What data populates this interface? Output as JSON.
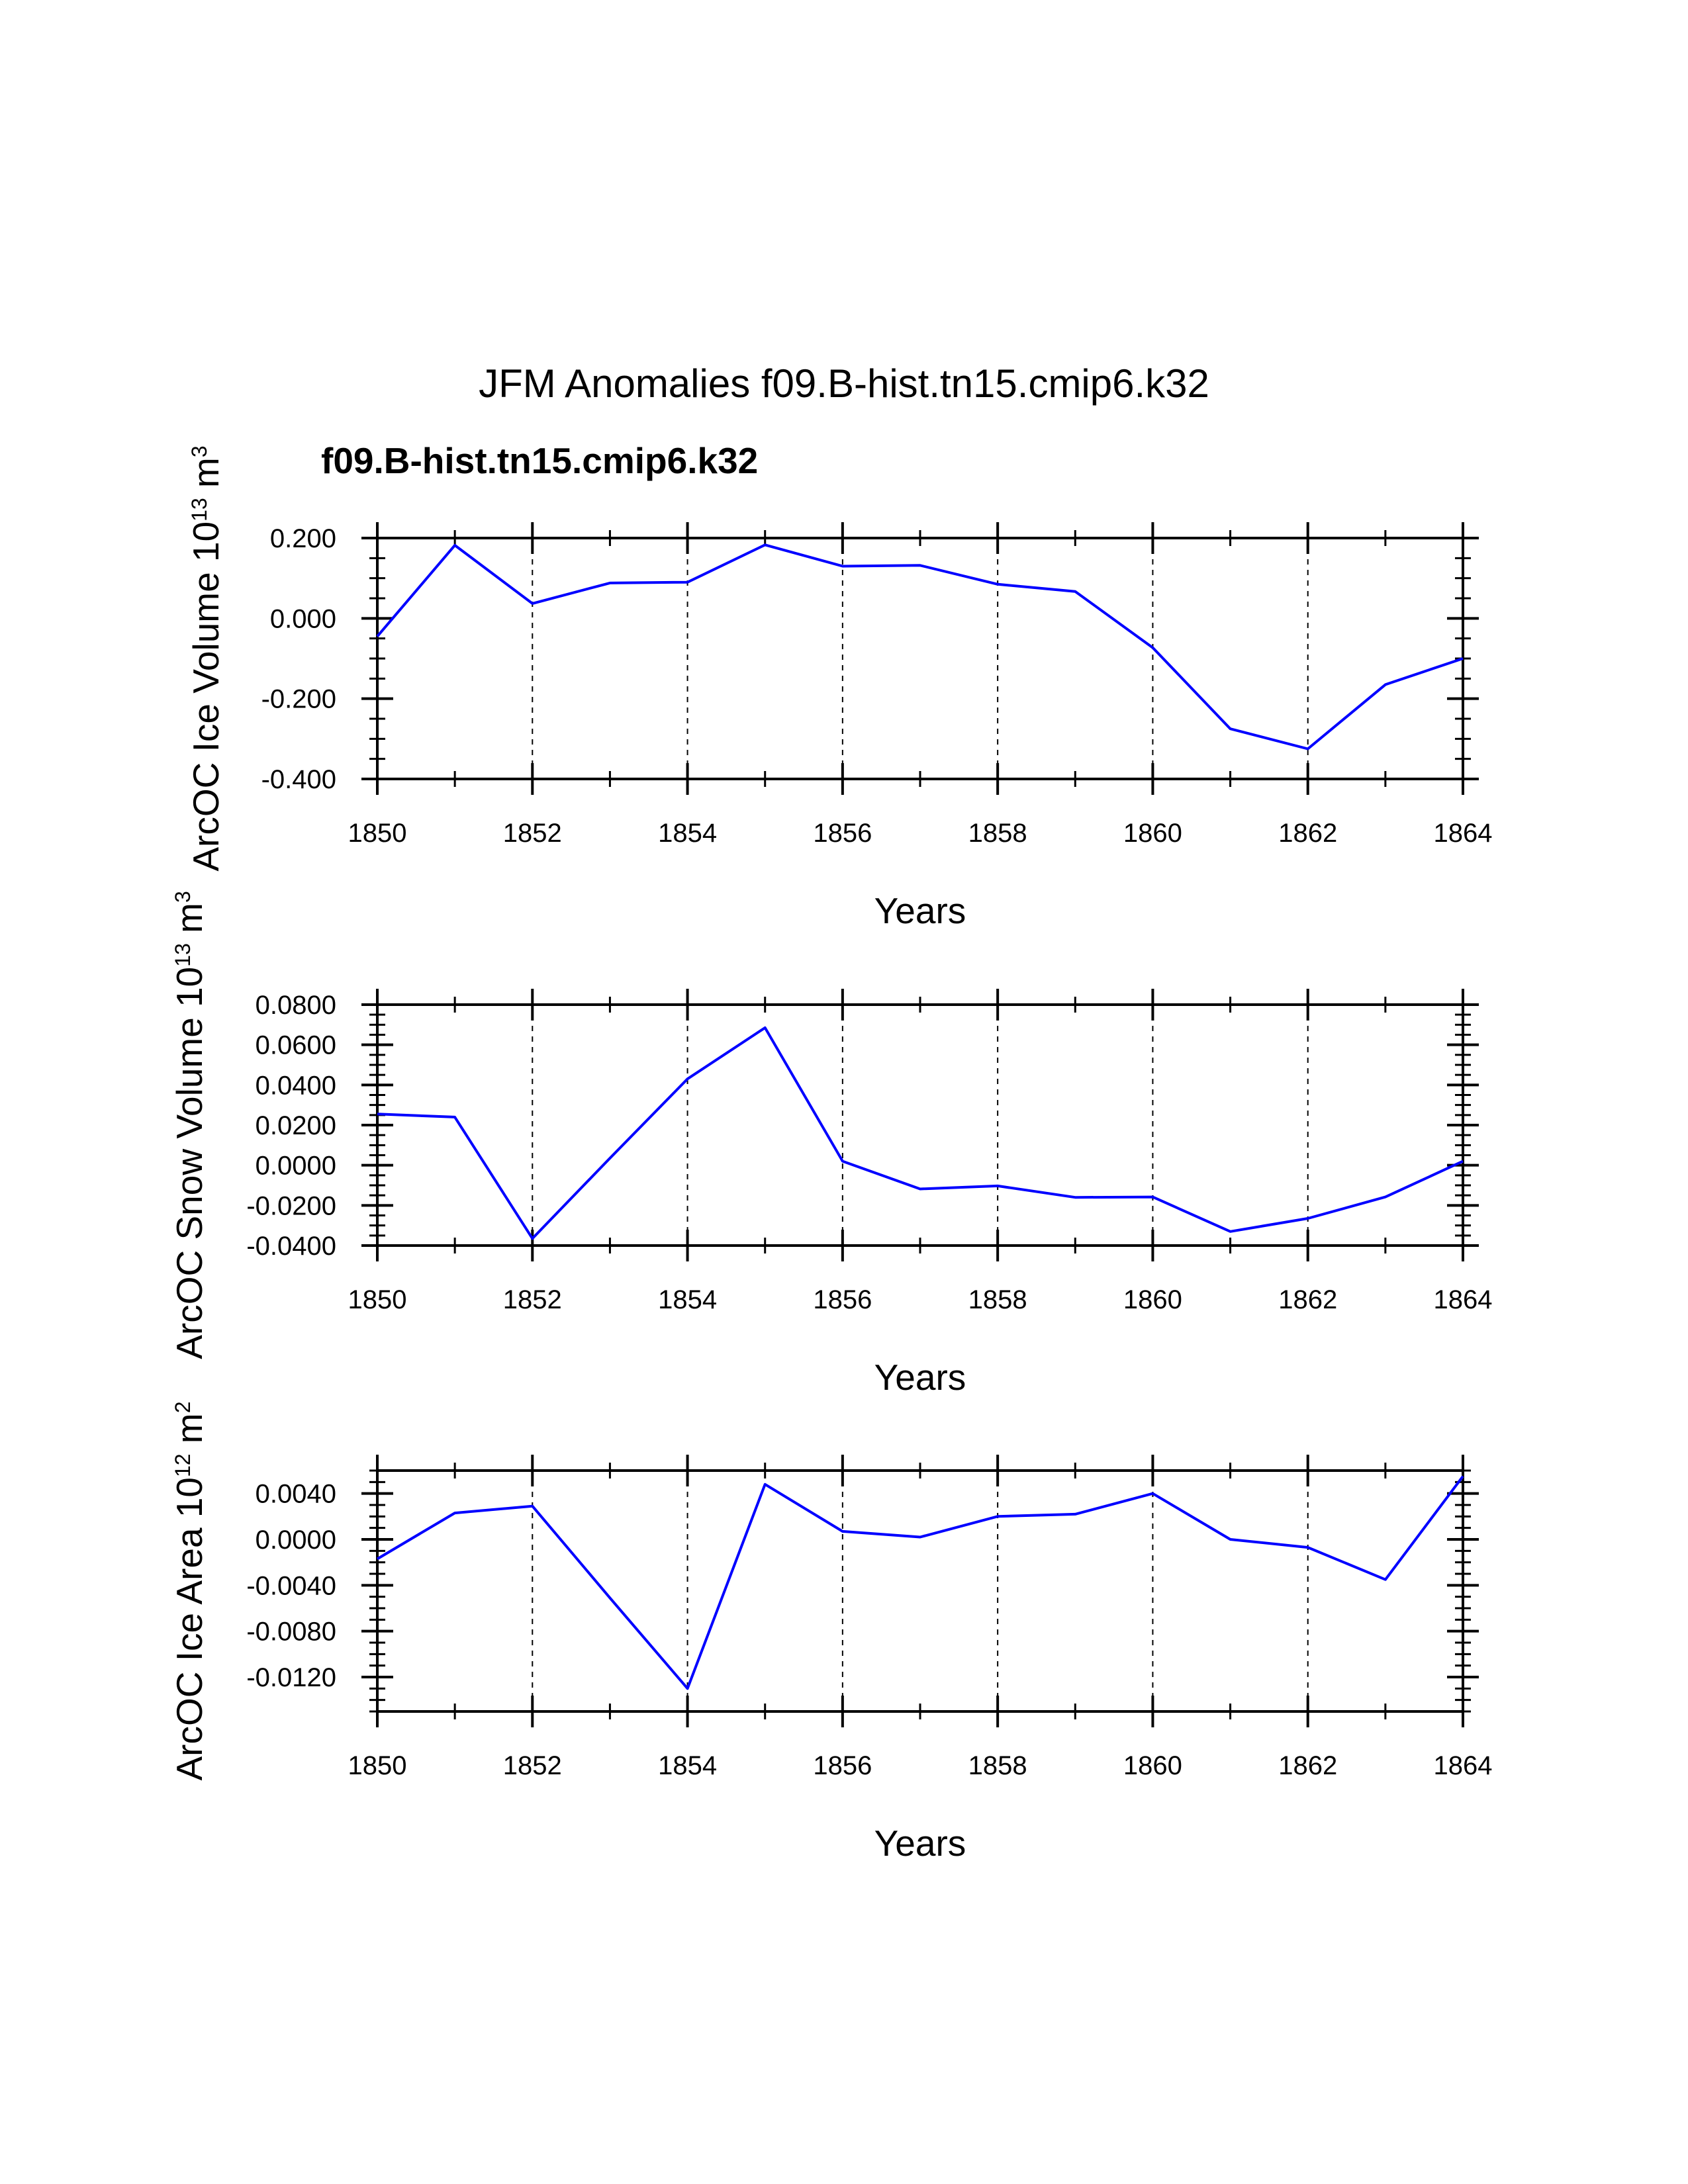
{
  "title": "JFM Anomalies f09.B-hist.tn15.cmip6.k32",
  "legend_label": "f09.B-hist.tn15.cmip6.k32",
  "colors": {
    "line": "#0000ff",
    "axis": "#000000",
    "grid": "#000000",
    "legend": "#0000ff"
  },
  "chart_data": [
    {
      "type": "line",
      "title": "",
      "xlabel": "Years",
      "ylabel": "ArcOC Ice Volume 10",
      "ylabel_exp": "13",
      "ylabel_unit": " m",
      "ylabel_unit_exp": "3",
      "x": [
        1850,
        1851,
        1852,
        1853,
        1854,
        1855,
        1856,
        1857,
        1858,
        1859,
        1860,
        1861,
        1862,
        1863,
        1864
      ],
      "series": [
        {
          "name": "f09.B-hist.tn15.cmip6.k32",
          "values": [
            -0.045,
            0.182,
            0.037,
            0.088,
            0.09,
            0.183,
            0.13,
            0.132,
            0.085,
            0.067,
            -0.073,
            -0.275,
            -0.325,
            -0.165,
            -0.1
          ]
        }
      ],
      "xlim": [
        1850,
        1864
      ],
      "ylim": [
        -0.4,
        0.2
      ],
      "xticks": [
        1850,
        1852,
        1854,
        1856,
        1858,
        1860,
        1862,
        1864
      ],
      "xtick_labels": [
        "1850",
        "1852",
        "1854",
        "1856",
        "1858",
        "1860",
        "1862",
        "1864"
      ],
      "yticks": [
        -0.4,
        -0.2,
        0.0,
        0.2
      ],
      "ytick_labels": [
        "-0.400",
        "-0.200",
        "0.000",
        "0.200"
      ],
      "y_minor_step": 0.05,
      "grid": "vertical dashed at major x ticks"
    },
    {
      "type": "line",
      "title": "",
      "xlabel": "Years",
      "ylabel": "ArcOC Snow Volume 10",
      "ylabel_exp": "13",
      "ylabel_unit": " m",
      "ylabel_unit_exp": "3",
      "x": [
        1850,
        1851,
        1852,
        1853,
        1854,
        1855,
        1856,
        1857,
        1858,
        1859,
        1860,
        1861,
        1862,
        1863,
        1864
      ],
      "series": [
        {
          "name": "f09.B-hist.tn15.cmip6.k32",
          "values": [
            0.0255,
            0.024,
            -0.0365,
            0.0035,
            0.043,
            0.0685,
            0.002,
            -0.0118,
            -0.0103,
            -0.016,
            -0.0158,
            -0.033,
            -0.0265,
            -0.0158,
            0.002
          ]
        }
      ],
      "xlim": [
        1850,
        1864
      ],
      "ylim": [
        -0.04,
        0.08
      ],
      "xticks": [
        1850,
        1852,
        1854,
        1856,
        1858,
        1860,
        1862,
        1864
      ],
      "xtick_labels": [
        "1850",
        "1852",
        "1854",
        "1856",
        "1858",
        "1860",
        "1862",
        "1864"
      ],
      "yticks": [
        -0.04,
        -0.02,
        0.0,
        0.02,
        0.04,
        0.06,
        0.08
      ],
      "ytick_labels": [
        "-0.0400",
        "-0.0200",
        "0.0000",
        "0.0200",
        "0.0400",
        "0.0600",
        "0.0800"
      ],
      "y_minor_step": 0.005,
      "grid": "vertical dashed at major x ticks"
    },
    {
      "type": "line",
      "title": "",
      "xlabel": "Years",
      "ylabel": "ArcOC Ice Area 10",
      "ylabel_exp": "12",
      "ylabel_unit": " m",
      "ylabel_unit_exp": "2",
      "x": [
        1850,
        1851,
        1852,
        1853,
        1854,
        1855,
        1856,
        1857,
        1858,
        1859,
        1860,
        1861,
        1862,
        1863,
        1864
      ],
      "series": [
        {
          "name": "f09.B-hist.tn15.cmip6.k32",
          "values": [
            -0.0017,
            0.0023,
            0.0029,
            -0.0051,
            -0.013,
            0.0048,
            0.0007,
            0.0002,
            0.002,
            0.0022,
            0.004,
            0.0,
            -0.0007,
            -0.0035,
            0.0055
          ]
        }
      ],
      "xlim": [
        1850,
        1864
      ],
      "ylim": [
        -0.015,
        0.006
      ],
      "xticks": [
        1850,
        1852,
        1854,
        1856,
        1858,
        1860,
        1862,
        1864
      ],
      "xtick_labels": [
        "1850",
        "1852",
        "1854",
        "1856",
        "1858",
        "1860",
        "1862",
        "1864"
      ],
      "yticks": [
        -0.012,
        -0.008,
        -0.004,
        0.0,
        0.004
      ],
      "ytick_labels": [
        "-0.0120",
        "-0.0080",
        "-0.0040",
        "0.0000",
        "0.0040"
      ],
      "y_minor_step": 0.001,
      "grid": "vertical dashed at major x ticks"
    }
  ]
}
